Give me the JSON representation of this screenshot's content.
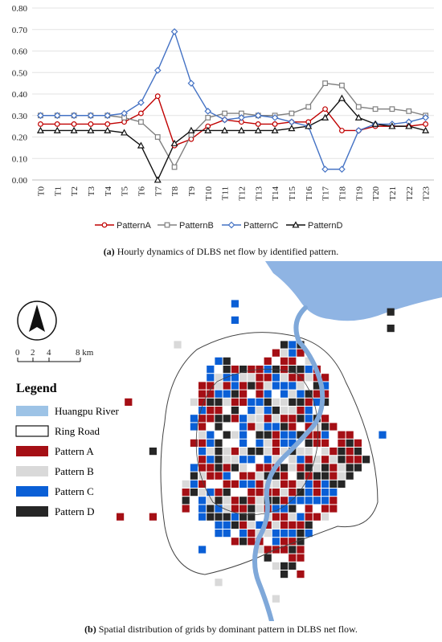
{
  "chart_data": [
    {
      "type": "line",
      "categories": [
        "T0",
        "T1",
        "T2",
        "T3",
        "T4",
        "T5",
        "T6",
        "T7",
        "T8",
        "T9",
        "T10",
        "T11",
        "T12",
        "T13",
        "T14",
        "T15",
        "T16",
        "T17",
        "T18",
        "T19",
        "T20",
        "T21",
        "T22",
        "T23"
      ],
      "ylim": [
        0,
        0.8
      ],
      "yticks": [
        "0.00",
        "0.10",
        "0.20",
        "0.30",
        "0.40",
        "0.50",
        "0.60",
        "0.70",
        "0.80"
      ],
      "grid": "horizontal",
      "legend_position": "bottom",
      "series": [
        {
          "name": "PatternA",
          "color": "#c00000",
          "marker": "circle",
          "values": [
            0.26,
            0.26,
            0.26,
            0.26,
            0.26,
            0.27,
            0.31,
            0.39,
            0.16,
            0.19,
            0.25,
            0.28,
            0.27,
            0.26,
            0.26,
            0.27,
            0.27,
            0.33,
            0.23,
            0.23,
            0.25,
            0.25,
            0.25,
            0.26
          ]
        },
        {
          "name": "PatternB",
          "color": "#808080",
          "marker": "square",
          "values": [
            0.3,
            0.3,
            0.3,
            0.3,
            0.3,
            0.29,
            0.27,
            0.2,
            0.06,
            0.21,
            0.29,
            0.31,
            0.31,
            0.3,
            0.3,
            0.31,
            0.34,
            0.45,
            0.44,
            0.34,
            0.33,
            0.33,
            0.32,
            0.3
          ]
        },
        {
          "name": "PatternC",
          "color": "#4472c4",
          "marker": "diamond",
          "values": [
            0.3,
            0.3,
            0.3,
            0.3,
            0.3,
            0.31,
            0.36,
            0.51,
            0.69,
            0.45,
            0.32,
            0.28,
            0.29,
            0.3,
            0.29,
            0.27,
            0.25,
            0.05,
            0.05,
            0.23,
            0.26,
            0.26,
            0.27,
            0.29
          ]
        },
        {
          "name": "PatternD",
          "color": "#111111",
          "marker": "triangle",
          "values": [
            0.23,
            0.23,
            0.23,
            0.23,
            0.23,
            0.22,
            0.16,
            0.0,
            0.17,
            0.23,
            0.23,
            0.23,
            0.23,
            0.23,
            0.23,
            0.24,
            0.25,
            0.29,
            0.38,
            0.29,
            0.26,
            0.25,
            0.25,
            0.23
          ]
        }
      ]
    }
  ],
  "caption_a": {
    "label": "(a)",
    "text": " Hourly dynamics of DLBS net flow by identified pattern."
  },
  "caption_b": {
    "label": "(b)",
    "text": " Spatial distribution of grids by dominant pattern in DLBS net flow."
  },
  "map": {
    "scale": {
      "ticks": [
        "0",
        "2",
        "4",
        "8 km"
      ]
    },
    "legend": {
      "title": "Legend",
      "items": [
        {
          "label": "Huangpu River",
          "color": "#9dc3e6"
        },
        {
          "label": "Ring Road",
          "color": "#ffffff"
        },
        {
          "label": "Pattern A",
          "color": "#a50f15"
        },
        {
          "label": "Pattern B",
          "color": "#d9d9d9"
        },
        {
          "label": "Pattern C",
          "color": "#0a5fd6"
        },
        {
          "label": "Pattern D",
          "color": "#262626"
        }
      ]
    },
    "colors": {
      "water": "#8fb4e3",
      "river": "#7fa8d9",
      "pattern_a": "#a50f15",
      "pattern_b": "#d9d9d9",
      "pattern_c": "#0a5fd6",
      "pattern_d": "#262626"
    }
  }
}
